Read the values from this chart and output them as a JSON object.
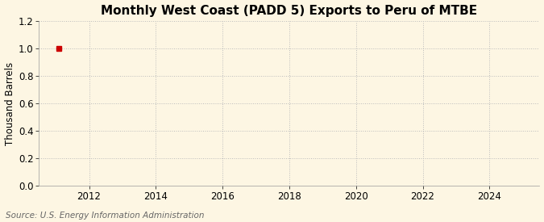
{
  "title": "Monthly West Coast (PADD 5) Exports to Peru of MTBE",
  "ylabel": "Thousand Barrels",
  "source": "Source: U.S. Energy Information Administration",
  "background_color": "#fdf6e3",
  "plot_background_color": "#fdf6e3",
  "data_x": [
    2011.083
  ],
  "data_y": [
    1.0
  ],
  "marker_color": "#cc0000",
  "marker_size": 4,
  "xlim": [
    2010.5,
    2025.5
  ],
  "ylim": [
    0.0,
    1.2
  ],
  "yticks": [
    0.0,
    0.2,
    0.4,
    0.6,
    0.8,
    1.0,
    1.2
  ],
  "xticks": [
    2012,
    2014,
    2016,
    2018,
    2020,
    2022,
    2024
  ],
  "grid_color": "#bbbbbb",
  "grid_linestyle": ":",
  "grid_linewidth": 0.7,
  "title_fontsize": 11,
  "label_fontsize": 8.5,
  "tick_fontsize": 8.5,
  "source_fontsize": 7.5
}
